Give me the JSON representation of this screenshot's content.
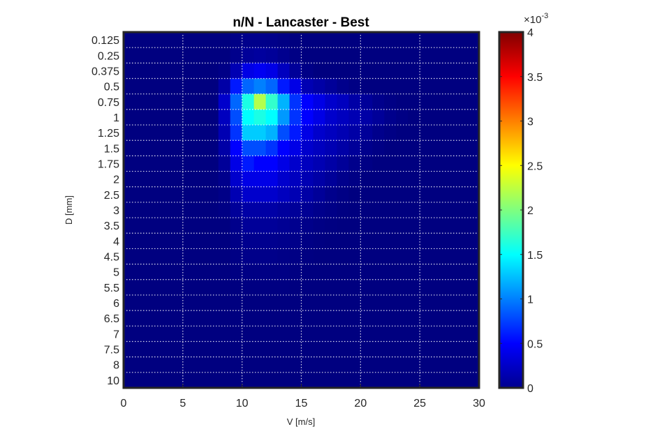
{
  "chart_data": {
    "type": "heatmap",
    "title": "n/N - Lancaster - Best",
    "xlabel": "V [m/s]",
    "ylabel": "D [mm]",
    "xlim": [
      0,
      30
    ],
    "x_ticks": [
      "0",
      "5",
      "10",
      "15",
      "20",
      "25",
      "30"
    ],
    "y_categories": [
      "0.125",
      "0.25",
      "0.375",
      "0.5",
      "0.75",
      "1",
      "1.25",
      "1.5",
      "1.75",
      "2",
      "2.5",
      "3",
      "3.5",
      "4",
      "4.5",
      "5",
      "5.5",
      "6",
      "6.5",
      "7",
      "7.5",
      "8",
      "10"
    ],
    "x_centers": [
      0.5,
      1.5,
      2.5,
      3.5,
      4.5,
      5.5,
      6.5,
      7.5,
      8.5,
      9.5,
      10.5,
      11.5,
      12.5,
      13.5,
      14.5,
      15.5,
      16.5,
      17.5,
      18.5,
      19.5,
      20.5,
      21.5,
      22.5,
      23.5,
      24.5,
      25.5,
      26.5,
      27.5,
      28.5,
      29.5
    ],
    "values_row_order": "top-to-bottom (D = 0.125 first)",
    "values": [
      [
        0,
        0,
        0,
        0,
        0,
        0,
        0,
        0,
        0,
        3e-05,
        5e-05,
        5e-05,
        4e-05,
        2e-05,
        0,
        0,
        0,
        0,
        0,
        0,
        0,
        0,
        0,
        0,
        0,
        0,
        0,
        0,
        0,
        0
      ],
      [
        0,
        0,
        0,
        0,
        0,
        0,
        0,
        0,
        0,
        5e-05,
        0.0001,
        0.00012,
        0.0001,
        6e-05,
        2e-05,
        0,
        0,
        0,
        0,
        0,
        0,
        0,
        0,
        0,
        0,
        0,
        0,
        0,
        0,
        0
      ],
      [
        0,
        0,
        0,
        0,
        0,
        0,
        0,
        0,
        3e-05,
        0.0002,
        0.0004,
        0.00045,
        0.0004,
        0.00025,
        0.0001,
        3e-05,
        0,
        0,
        0,
        0,
        0,
        0,
        0,
        0,
        0,
        0,
        0,
        0,
        0,
        0
      ],
      [
        0,
        0,
        0,
        0,
        0,
        0,
        0,
        0,
        0.00015,
        0.0006,
        0.0009,
        0.001,
        0.0009,
        0.0006,
        0.0004,
        0.0002,
        0.00015,
        0.0001,
        5e-05,
        2e-05,
        0,
        0,
        0,
        0,
        0,
        0,
        0,
        0,
        0,
        0
      ],
      [
        0,
        0,
        0,
        0,
        0,
        0,
        0,
        0,
        0.0003,
        0.0009,
        0.0016,
        0.0022,
        0.0017,
        0.0012,
        0.0007,
        0.0005,
        0.0004,
        0.0003,
        0.00025,
        0.00015,
        0.0001,
        5e-05,
        2e-05,
        0,
        0,
        0,
        0,
        0,
        0,
        0
      ],
      [
        0,
        0,
        0,
        0,
        0,
        0,
        0,
        0,
        0.00025,
        0.0008,
        0.0015,
        0.0016,
        0.0015,
        0.0011,
        0.0007,
        0.0005,
        0.0004,
        0.0003,
        0.00025,
        0.0002,
        0.00015,
        0.0001,
        5e-05,
        2e-05,
        0,
        0,
        0,
        0,
        0,
        0
      ],
      [
        0,
        0,
        0,
        0,
        0,
        0,
        0,
        0,
        0.0002,
        0.0007,
        0.0013,
        0.0013,
        0.0012,
        0.0008,
        0.0006,
        0.0004,
        0.0003,
        0.00025,
        0.0002,
        0.00015,
        0.0001,
        5e-05,
        2e-05,
        0,
        0,
        0,
        0,
        0,
        0,
        0
      ],
      [
        0,
        0,
        0,
        0,
        0,
        0,
        0,
        0,
        0.00015,
        0.0005,
        0.0008,
        0.0008,
        0.0007,
        0.0005,
        0.0004,
        0.0003,
        0.00025,
        0.0002,
        0.00015,
        0.0001,
        5e-05,
        2e-05,
        0,
        0,
        0,
        0,
        0,
        0,
        0,
        0
      ],
      [
        0,
        0,
        0,
        0,
        0,
        0,
        0,
        0,
        0.0001,
        0.0004,
        0.0006,
        0.0005,
        0.0005,
        0.0004,
        0.0003,
        0.00025,
        0.0002,
        0.00015,
        0.0001,
        5e-05,
        2e-05,
        0,
        0,
        0,
        0,
        0,
        0,
        0,
        0,
        0
      ],
      [
        0,
        0,
        0,
        0,
        0,
        0,
        0,
        0,
        5e-05,
        0.0003,
        0.0004,
        0.0004,
        0.0004,
        0.0003,
        0.00025,
        0.0002,
        0.00015,
        0.0001,
        5e-05,
        2e-05,
        0,
        0,
        0,
        0,
        0,
        0,
        0,
        0,
        0,
        0
      ],
      [
        0,
        0,
        0,
        0,
        0,
        0,
        0,
        0,
        3e-05,
        0.0002,
        0.0003,
        0.0003,
        0.0003,
        0.00025,
        0.0002,
        0.00015,
        0.0001,
        5e-05,
        2e-05,
        0,
        0,
        0,
        0,
        0,
        0,
        0,
        0,
        0,
        0,
        0
      ],
      [
        0,
        0,
        0,
        0,
        0,
        0,
        0,
        0,
        2e-05,
        0.0001,
        0.00015,
        0.00015,
        0.00015,
        0.00012,
        0.0001,
        8e-05,
        5e-05,
        3e-05,
        1e-05,
        0,
        0,
        0,
        0,
        0,
        0,
        0,
        0,
        0,
        0,
        0
      ],
      [
        0,
        0,
        0,
        0,
        0,
        0,
        0,
        0,
        0,
        5e-05,
        0.0001,
        0.0001,
        0.0001,
        8e-05,
        6e-05,
        4e-05,
        2e-05,
        1e-05,
        0,
        0,
        0,
        0,
        0,
        0,
        0,
        0,
        0,
        0,
        0,
        0
      ],
      [
        0,
        0,
        0,
        0,
        0,
        0,
        0,
        0,
        0,
        3e-05,
        6e-05,
        6e-05,
        6e-05,
        5e-05,
        4e-05,
        2e-05,
        1e-05,
        0,
        0,
        0,
        0,
        0,
        0,
        0,
        0,
        0,
        0,
        0,
        0,
        0
      ],
      [
        0,
        0,
        0,
        0,
        0,
        0,
        0,
        0,
        0,
        2e-05,
        4e-05,
        4e-05,
        4e-05,
        3e-05,
        2e-05,
        1e-05,
        0,
        0,
        0,
        0,
        0,
        0,
        0,
        0,
        0,
        0,
        0,
        0,
        0,
        0
      ],
      [
        0,
        0,
        0,
        0,
        0,
        0,
        0,
        0,
        0,
        1e-05,
        2e-05,
        2e-05,
        2e-05,
        2e-05,
        1e-05,
        0,
        0,
        0,
        0,
        0,
        0,
        0,
        0,
        0,
        0,
        0,
        0,
        0,
        0,
        0
      ],
      [
        0,
        0,
        0,
        0,
        0,
        0,
        0,
        0,
        0,
        0,
        1e-05,
        1e-05,
        1e-05,
        1e-05,
        0,
        0,
        0,
        0,
        0,
        0,
        0,
        0,
        0,
        0,
        0,
        0,
        0,
        0,
        0,
        0
      ],
      [
        0,
        0,
        0,
        0,
        0,
        0,
        0,
        0,
        0,
        0,
        0,
        0,
        0,
        0,
        0,
        0,
        0,
        0,
        0,
        0,
        0,
        0,
        0,
        0,
        0,
        0,
        0,
        0,
        0,
        0
      ],
      [
        0,
        0,
        0,
        0,
        0,
        0,
        0,
        0,
        0,
        0,
        0,
        0,
        0,
        0,
        0,
        0,
        0,
        0,
        0,
        0,
        0,
        0,
        0,
        0,
        0,
        0,
        0,
        0,
        0,
        0
      ],
      [
        0,
        0,
        0,
        0,
        0,
        0,
        0,
        0,
        0,
        0,
        0,
        0,
        0,
        0,
        0,
        0,
        0,
        0,
        0,
        0,
        0,
        0,
        0,
        0,
        0,
        0,
        0,
        0,
        0,
        0
      ],
      [
        0,
        0,
        0,
        0,
        0,
        0,
        0,
        0,
        0,
        0,
        0,
        0,
        0,
        0,
        0,
        0,
        0,
        0,
        0,
        0,
        0,
        0,
        0,
        0,
        0,
        0,
        0,
        0,
        0,
        0
      ],
      [
        0,
        0,
        0,
        0,
        0,
        0,
        0,
        0,
        0,
        0,
        0,
        0,
        0,
        0,
        0,
        0,
        0,
        0,
        0,
        0,
        0,
        0,
        0,
        0,
        0,
        0,
        0,
        0,
        0,
        0
      ],
      [
        0,
        0,
        0,
        0,
        0,
        0,
        0,
        0,
        0,
        0,
        0,
        0,
        0,
        0,
        0,
        0,
        0,
        0,
        0,
        0,
        0,
        0,
        0,
        0,
        0,
        0,
        0,
        0,
        0,
        0
      ]
    ],
    "colorbar": {
      "colormap": "jet",
      "clim": [
        0,
        0.004
      ],
      "exponent_label": "×10",
      "exponent_power": "-3",
      "tick_labels": [
        "0",
        "0.5",
        "1",
        "1.5",
        "2",
        "2.5",
        "3",
        "3.5",
        "4"
      ]
    },
    "grid": "dotted white",
    "colors": {
      "background": "#ffffff",
      "axis": "#262626",
      "grid": "#ffffff"
    }
  }
}
